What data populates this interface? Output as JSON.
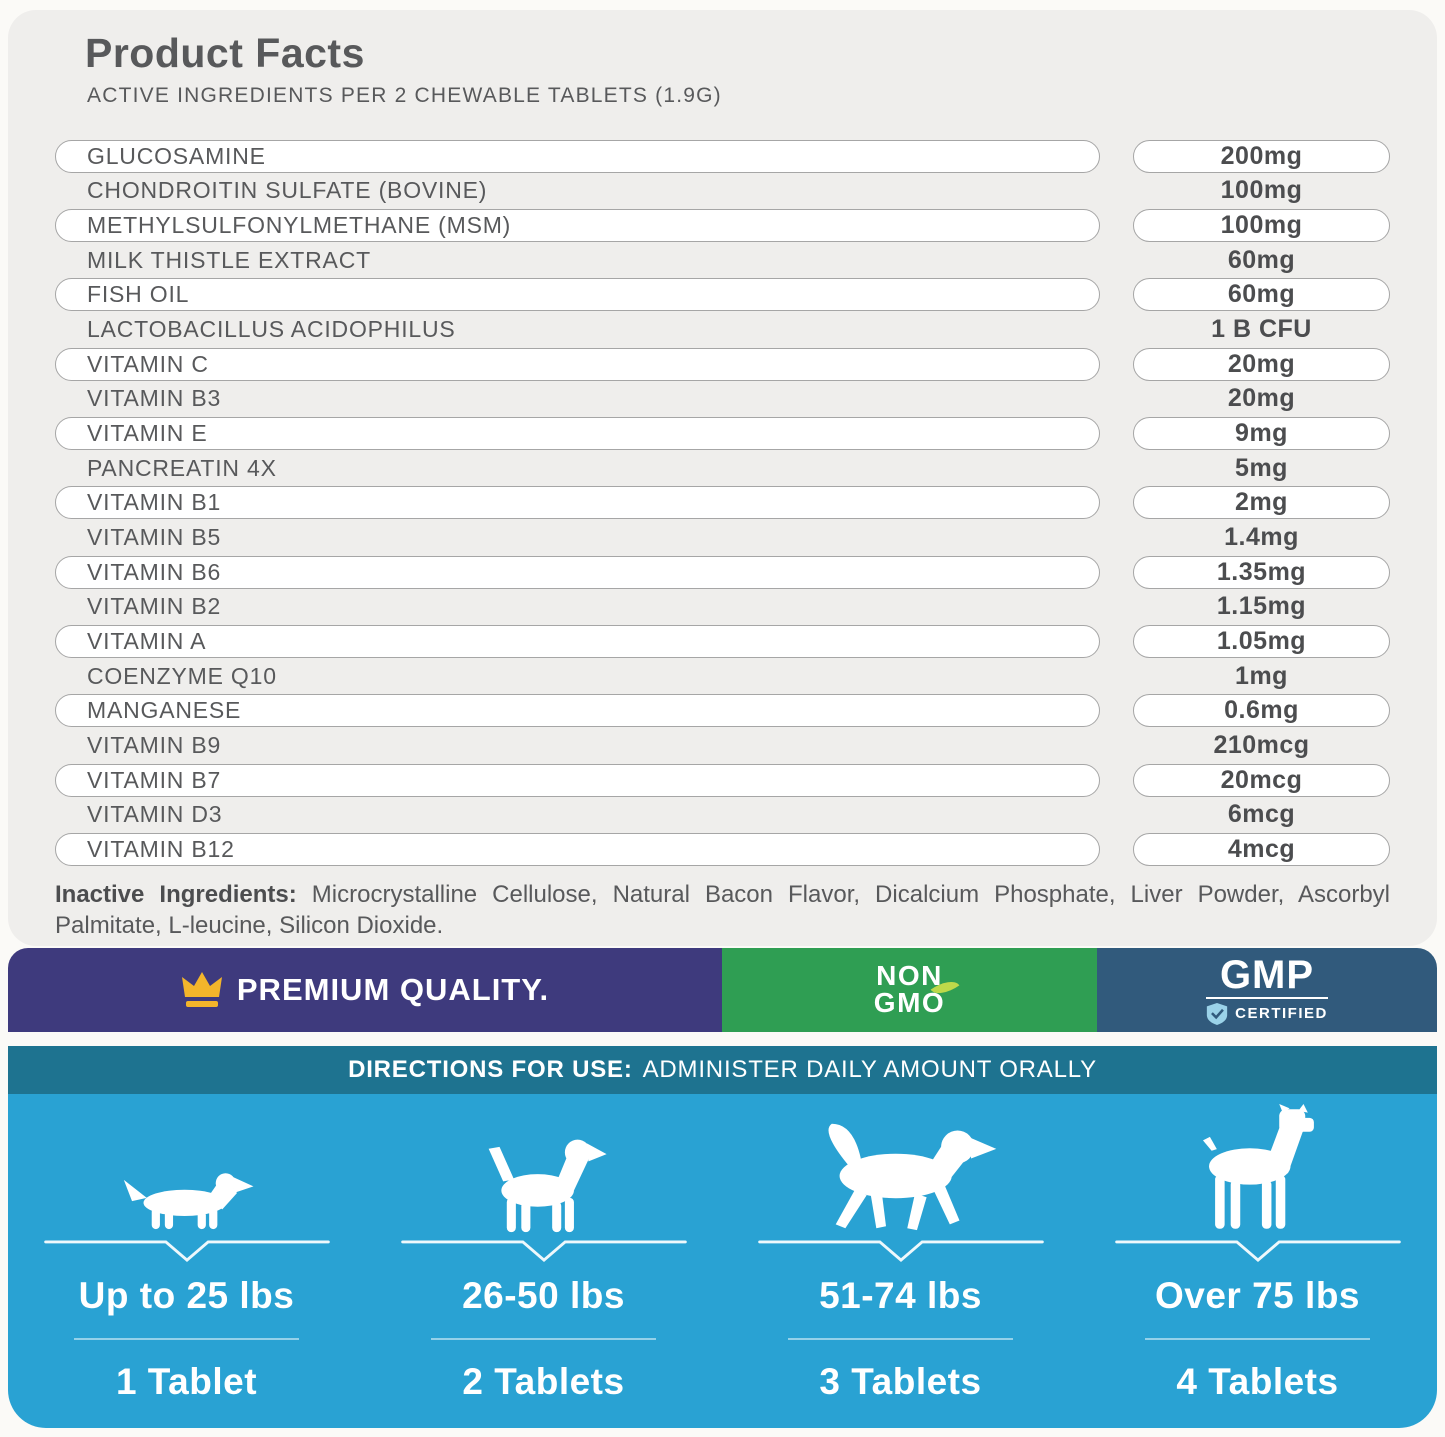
{
  "panel": {
    "title": "Product Facts",
    "subtitle": "ACTIVE INGREDIENTS PER 2 CHEWABLE TABLETS (1.9G)"
  },
  "ingredients": [
    {
      "name": "GLUCOSAMINE",
      "value": "200mg"
    },
    {
      "name": "CHONDROITIN SULFATE (BOVINE)",
      "value": "100mg"
    },
    {
      "name": "METHYLSULFONYLMETHANE (MSM)",
      "value": "100mg"
    },
    {
      "name": "MILK THISTLE EXTRACT",
      "value": "60mg"
    },
    {
      "name": "FISH OIL",
      "value": "60mg"
    },
    {
      "name": "LACTOBACILLUS ACIDOPHILUS",
      "value": "1 B CFU"
    },
    {
      "name": "VITAMIN C",
      "value": "20mg"
    },
    {
      "name": "VITAMIN B3",
      "value": "20mg"
    },
    {
      "name": "VITAMIN E",
      "value": "9mg"
    },
    {
      "name": "PANCREATIN 4X",
      "value": "5mg"
    },
    {
      "name": "VITAMIN B1",
      "value": "2mg"
    },
    {
      "name": "VITAMIN B5",
      "value": "1.4mg"
    },
    {
      "name": "VITAMIN B6",
      "value": "1.35mg"
    },
    {
      "name": "VITAMIN B2",
      "value": "1.15mg"
    },
    {
      "name": "VITAMIN A",
      "value": "1.05mg"
    },
    {
      "name": "COENZYME Q10",
      "value": "1mg"
    },
    {
      "name": "MANGANESE",
      "value": "0.6mg"
    },
    {
      "name": "VITAMIN B9",
      "value": "210mcg"
    },
    {
      "name": "VITAMIN B7",
      "value": "20mcg"
    },
    {
      "name": "VITAMIN D3",
      "value": "6mcg"
    },
    {
      "name": "VITAMIN B12",
      "value": "4mcg"
    }
  ],
  "inactive": {
    "label": "Inactive Ingredients:",
    "text": "Microcrystalline Cellulose, Natural Bacon Flavor, Dicalcium Phosphate, Liver Powder, Ascorbyl Palmitate, L-leucine, Silicon Dioxide."
  },
  "badges": {
    "premium": {
      "label": "PREMIUM QUALITY.",
      "icon": "crown-icon"
    },
    "non_gmo": {
      "line1": "NON",
      "line2": "GMO",
      "icon": "leaf-icon"
    },
    "gmp": {
      "title": "GMP",
      "subtitle": "CERTIFIED",
      "icon": "shield-check-icon"
    }
  },
  "directions": {
    "header_bold": "DIRECTIONS FOR USE:",
    "header_rest": "ADMINISTER DAILY AMOUNT ORALLY",
    "columns": [
      {
        "dog": "dachshund",
        "weight": "Up to 25 lbs",
        "dose": "1 Tablet"
      },
      {
        "dog": "medium-dog",
        "weight": "26-50 lbs",
        "dose": "2 Tablets"
      },
      {
        "dog": "retriever",
        "weight": "51-74 lbs",
        "dose": "3 Tablets"
      },
      {
        "dog": "boxer",
        "weight": "Over 75 lbs",
        "dose": "4 Tablets"
      }
    ]
  },
  "colors": {
    "panel-bg": "#efeeec",
    "pill-border": "#a6a6a6",
    "text": "#58595b",
    "text-strong": "#4c4d4f",
    "premium-bg": "#3e3a7d",
    "crown": "#f3b52b",
    "nongmo-bg": "#2f9e53",
    "leaf": "#bdd94a",
    "gmp-bg": "#315a7c",
    "shield": "#9ad2e8",
    "directions-header-bg": "#1e7390",
    "directions-bg": "#29a2d3"
  }
}
